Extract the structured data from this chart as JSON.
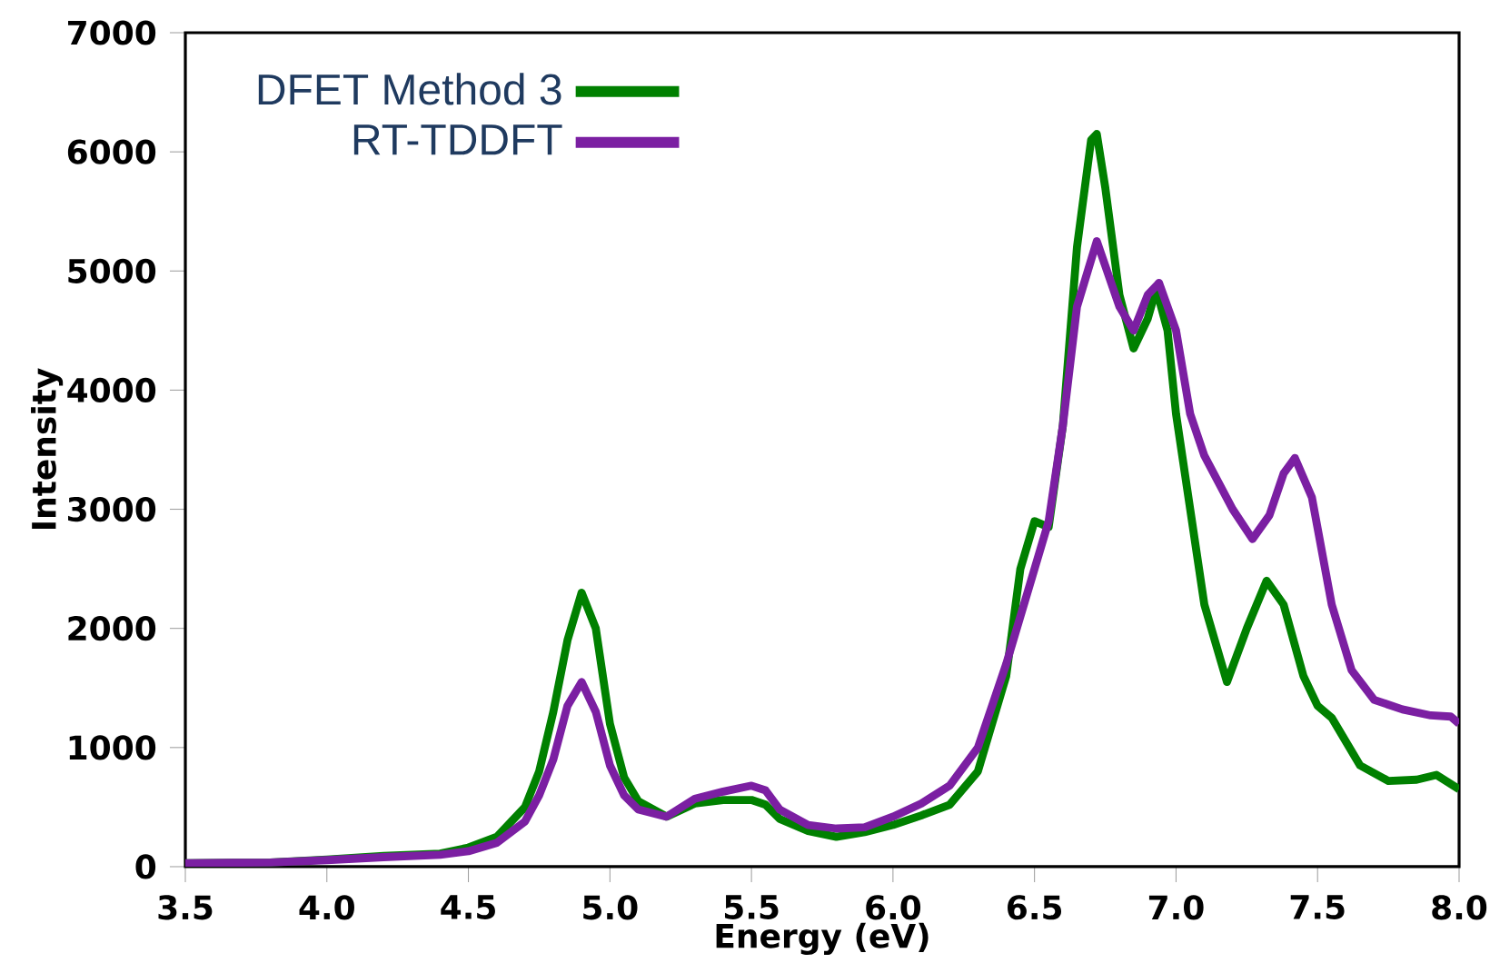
{
  "chart_data": {
    "type": "line",
    "xlabel": "Energy (eV)",
    "ylabel": "Intensity",
    "xlim": [
      3.5,
      8.0
    ],
    "ylim": [
      0,
      7000
    ],
    "xticks": [
      {
        "value": 3.5,
        "label": "3.5"
      },
      {
        "value": 4.0,
        "label": "4.0"
      },
      {
        "value": 4.5,
        "label": "4.5"
      },
      {
        "value": 5.0,
        "label": "5.0"
      },
      {
        "value": 5.5,
        "label": "5.5"
      },
      {
        "value": 6.0,
        "label": "6.0"
      },
      {
        "value": 6.5,
        "label": "6.5"
      },
      {
        "value": 7.0,
        "label": "7.0"
      },
      {
        "value": 7.5,
        "label": "7.5"
      },
      {
        "value": 8.0,
        "label": "8.0"
      }
    ],
    "yticks": [
      0,
      1000,
      2000,
      3000,
      4000,
      5000,
      6000,
      7000
    ],
    "legend": "top left",
    "grid": false,
    "marker": "none",
    "line_style": "solid",
    "series": [
      {
        "name": "DFET Method 3",
        "color": "#008000",
        "x": [
          3.5,
          3.8,
          4.0,
          4.2,
          4.4,
          4.5,
          4.6,
          4.7,
          4.75,
          4.8,
          4.85,
          4.9,
          4.95,
          5.0,
          5.05,
          5.1,
          5.2,
          5.3,
          5.4,
          5.5,
          5.55,
          5.6,
          5.7,
          5.8,
          5.9,
          6.0,
          6.1,
          6.2,
          6.3,
          6.4,
          6.45,
          6.5,
          6.55,
          6.6,
          6.65,
          6.7,
          6.72,
          6.75,
          6.8,
          6.85,
          6.9,
          6.93,
          6.97,
          7.0,
          7.05,
          7.1,
          7.18,
          7.25,
          7.32,
          7.38,
          7.45,
          7.5,
          7.55,
          7.65,
          7.75,
          7.85,
          7.92,
          8.0
        ],
        "values": [
          30,
          35,
          60,
          90,
          110,
          160,
          250,
          500,
          800,
          1300,
          1900,
          2300,
          2000,
          1200,
          750,
          550,
          420,
          530,
          560,
          560,
          520,
          400,
          300,
          250,
          290,
          350,
          430,
          520,
          800,
          1600,
          2500,
          2900,
          2850,
          3700,
          5200,
          6100,
          6150,
          5700,
          4800,
          4350,
          4600,
          4850,
          4500,
          3800,
          3000,
          2200,
          1550,
          2000,
          2400,
          2200,
          1600,
          1350,
          1250,
          850,
          720,
          730,
          770,
          650
        ]
      },
      {
        "name": "RT-TDDFT",
        "color": "#7b1fa2",
        "x": [
          3.5,
          3.8,
          4.0,
          4.2,
          4.4,
          4.5,
          4.6,
          4.7,
          4.75,
          4.8,
          4.85,
          4.9,
          4.95,
          5.0,
          5.05,
          5.1,
          5.2,
          5.3,
          5.4,
          5.5,
          5.55,
          5.6,
          5.7,
          5.8,
          5.9,
          6.0,
          6.1,
          6.2,
          6.3,
          6.4,
          6.5,
          6.55,
          6.6,
          6.65,
          6.72,
          6.8,
          6.85,
          6.9,
          6.94,
          7.0,
          7.05,
          7.1,
          7.2,
          7.27,
          7.33,
          7.38,
          7.42,
          7.48,
          7.55,
          7.62,
          7.7,
          7.8,
          7.9,
          7.97,
          8.0
        ],
        "values": [
          30,
          35,
          55,
          80,
          100,
          130,
          200,
          380,
          600,
          900,
          1350,
          1550,
          1300,
          850,
          600,
          480,
          420,
          570,
          630,
          680,
          640,
          480,
          350,
          320,
          330,
          420,
          530,
          680,
          1000,
          1700,
          2500,
          2900,
          3700,
          4700,
          5250,
          4700,
          4500,
          4800,
          4900,
          4500,
          3800,
          3450,
          3000,
          2750,
          2950,
          3300,
          3430,
          3100,
          2200,
          1650,
          1400,
          1320,
          1270,
          1260,
          1200
        ]
      }
    ]
  }
}
